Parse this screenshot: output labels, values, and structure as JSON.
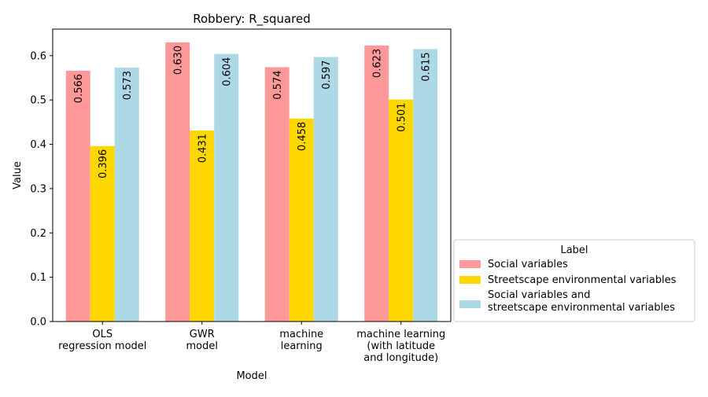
{
  "chart_data": {
    "type": "bar",
    "title": "Robbery: R_squared",
    "xlabel": "Model",
    "ylabel": "Value",
    "ylim": [
      0,
      0.66
    ],
    "yticks": [
      "0.0",
      "0.1",
      "0.2",
      "0.3",
      "0.4",
      "0.5",
      "0.6"
    ],
    "categories": [
      [
        "OLS",
        "regression model"
      ],
      [
        "GWR",
        "model"
      ],
      [
        "machine",
        "learning"
      ],
      [
        "machine learning",
        "(with latitude",
        "and longitude)"
      ]
    ],
    "series": [
      {
        "name": "Social variables",
        "color": "#ff9999",
        "values": [
          0.566,
          0.63,
          0.574,
          0.623
        ],
        "labels": [
          "0.566",
          "0.630",
          "0.574",
          "0.623"
        ]
      },
      {
        "name": "Streetscape environmental variables",
        "color": "#ffd700",
        "values": [
          0.396,
          0.431,
          0.458,
          0.501
        ],
        "labels": [
          "0.396",
          "0.431",
          "0.458",
          "0.501"
        ]
      },
      {
        "name": "Social variables and\nstreetscape environmental variables",
        "color": "#add8e6",
        "values": [
          0.573,
          0.604,
          0.597,
          0.615
        ],
        "labels": [
          "0.573",
          "0.604",
          "0.597",
          "0.615"
        ]
      }
    ],
    "legend": {
      "title": "Label",
      "position": "lower-right-outside"
    },
    "grid": false
  }
}
